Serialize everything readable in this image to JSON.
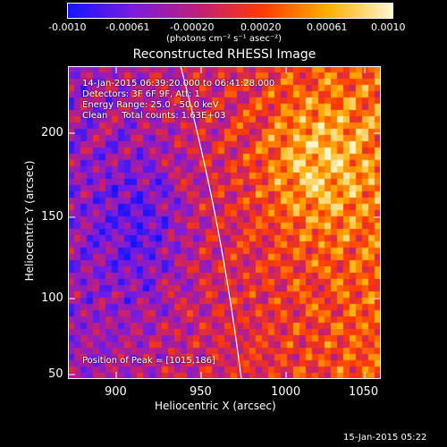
{
  "colorbar": {
    "ticks": [
      "-0.0010",
      "-0.00061",
      "-0.00020",
      "0.00020",
      "0.00061",
      "0.0010"
    ],
    "unit_label": "(photons cm⁻² s⁻¹ asec⁻²)",
    "colors": [
      "#1414ff",
      "#7a1ce0",
      "#c01e7a",
      "#ff3a00",
      "#ffae00",
      "#fff7cf"
    ]
  },
  "title": "Reconstructed RHESSI Image",
  "annotations": {
    "time_range": "14-Jan-2015 06:39:20.000 to 06:41:28.000",
    "detectors": "Detectors: 3F 6F 9F, Att: 1",
    "energy": "Energy Range: 25.0 - 50.0 keV",
    "method": "Clean     Total counts: 1.63E+03",
    "peak": "Position of Peak = [1015,186]"
  },
  "x_axis": {
    "label": "Heliocentric X (arcsec)",
    "ticks": [
      "900",
      "950",
      "1000",
      "1050"
    ]
  },
  "y_axis": {
    "label": "Heliocentric Y (arcsec)",
    "ticks": [
      "50",
      "100",
      "150",
      "200"
    ]
  },
  "footer_timestamp": "15-Jan-2015 05:22"
}
